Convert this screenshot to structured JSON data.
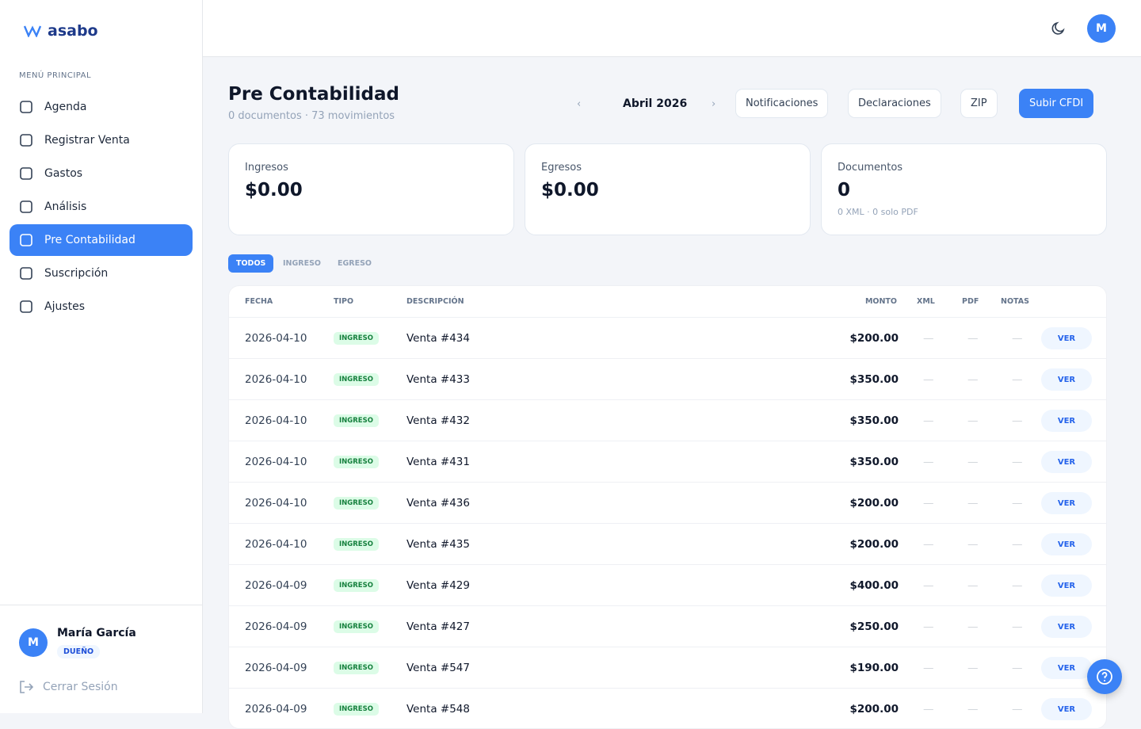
{
  "brand": "asabo",
  "sidebar": {
    "section_title": "MENÚ PRINCIPAL",
    "items": [
      "Agenda",
      "Registrar Venta",
      "Gastos",
      "Análisis",
      "Pre Contabilidad",
      "Suscripción",
      "Ajustes"
    ],
    "active": 4,
    "user": {
      "initial": "M",
      "name": "María García",
      "role": "DUEÑO"
    },
    "logout": "Cerrar Sesión"
  },
  "topbar": {
    "avatar": "M"
  },
  "header": {
    "title": "Pre Contabilidad",
    "subtitle": "0 documentos · 73 movimientos",
    "month": "Abril 2026",
    "buttons": [
      "Notificaciones",
      "Declaraciones",
      "ZIP",
      "Subir CFDI"
    ]
  },
  "cards": [
    {
      "label": "Ingresos",
      "value": "$0.00"
    },
    {
      "label": "Egresos",
      "value": "$0.00"
    },
    {
      "label": "Documentos",
      "value": "0",
      "note": "0 XML · 0 solo PDF"
    }
  ],
  "tabs": [
    "TODOS",
    "INGRESO",
    "EGRESO"
  ],
  "table": {
    "columns": [
      "FECHA",
      "TIPO",
      "DESCRIPCIÓN",
      "MONTO",
      "XML",
      "PDF",
      "NOTAS"
    ],
    "rows": [
      [
        "2026-04-10",
        "INGRESO",
        "Venta #434",
        "$200.00",
        "—",
        "—",
        "—",
        "VER"
      ],
      [
        "2026-04-10",
        "INGRESO",
        "Venta #433",
        "$350.00",
        "—",
        "—",
        "—",
        "VER"
      ],
      [
        "2026-04-10",
        "INGRESO",
        "Venta #432",
        "$350.00",
        "—",
        "—",
        "—",
        "VER"
      ],
      [
        "2026-04-10",
        "INGRESO",
        "Venta #431",
        "$350.00",
        "—",
        "—",
        "—",
        "VER"
      ],
      [
        "2026-04-10",
        "INGRESO",
        "Venta #436",
        "$200.00",
        "—",
        "—",
        "—",
        "VER"
      ],
      [
        "2026-04-10",
        "INGRESO",
        "Venta #435",
        "$200.00",
        "—",
        "—",
        "—",
        "VER"
      ],
      [
        "2026-04-09",
        "INGRESO",
        "Venta #429",
        "$400.00",
        "—",
        "—",
        "—",
        "VER"
      ],
      [
        "2026-04-09",
        "INGRESO",
        "Venta #427",
        "$250.00",
        "—",
        "—",
        "—",
        "VER"
      ],
      [
        "2026-04-09",
        "INGRESO",
        "Venta #547",
        "$190.00",
        "—",
        "—",
        "—",
        "VER"
      ],
      [
        "2026-04-09",
        "INGRESO",
        "Venta #548",
        "$200.00",
        "—",
        "—",
        "—",
        "VER"
      ]
    ]
  }
}
